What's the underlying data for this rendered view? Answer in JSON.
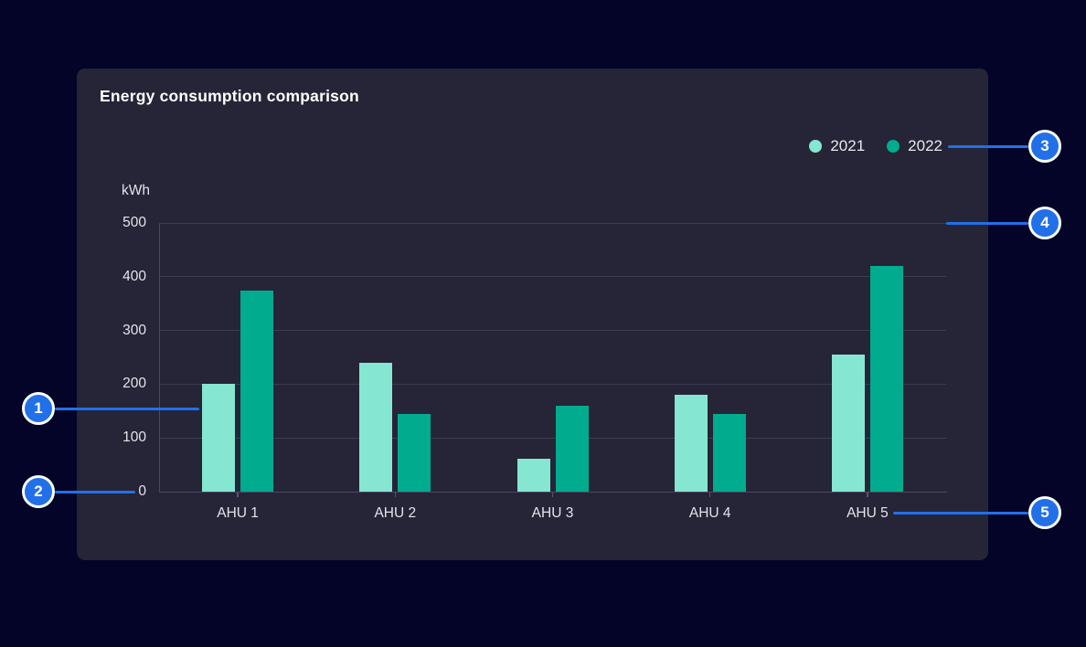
{
  "page": {
    "background": "#040428"
  },
  "card": {
    "background": "#262437",
    "title": "Energy consumption comparison"
  },
  "chart_data": {
    "type": "bar",
    "title": "Energy consumption comparison",
    "xlabel": "",
    "ylabel": "kWh",
    "categories": [
      "AHU 1",
      "AHU 2",
      "AHU 3",
      "AHU 4",
      "AHU 5"
    ],
    "series": [
      {
        "name": "2021",
        "color": "#85E6D1",
        "values": [
          200,
          240,
          62,
          180,
          255
        ]
      },
      {
        "name": "2022",
        "color": "#00AB8E",
        "values": [
          375,
          145,
          160,
          145,
          420
        ]
      }
    ],
    "ylim": [
      0,
      500
    ],
    "yticks": [
      0,
      100,
      200,
      300,
      400,
      500
    ],
    "grid": true,
    "legend_position": "top-right"
  },
  "annotations": {
    "badge_fill": "#2270E8",
    "line_color": "#2270E8",
    "items": [
      {
        "number": "1"
      },
      {
        "number": "2"
      },
      {
        "number": "3"
      },
      {
        "number": "4"
      },
      {
        "number": "5"
      }
    ]
  }
}
